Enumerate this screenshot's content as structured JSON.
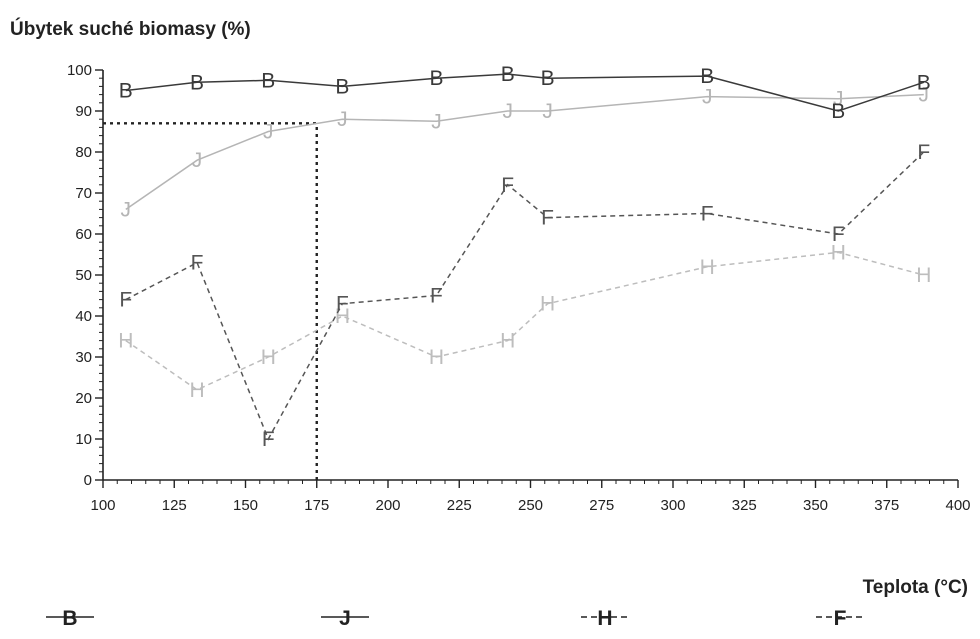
{
  "chart_data": {
    "type": "line",
    "ylabel": "Úbytek suché biomasy (%)",
    "xlabel": "Teplota (°C)",
    "xlim": [
      100,
      400
    ],
    "ylim": [
      0,
      100
    ],
    "x_ticks": [
      100,
      125,
      150,
      175,
      200,
      225,
      250,
      275,
      300,
      325,
      350,
      375,
      400
    ],
    "y_ticks": [
      0,
      10,
      20,
      30,
      40,
      50,
      60,
      70,
      80,
      90,
      100
    ],
    "legend_position": "bottom",
    "grid": false,
    "reference_lines": [
      {
        "kind": "horizontal",
        "y": 87,
        "x_from": 100,
        "x_to": 175
      },
      {
        "kind": "vertical",
        "x": 175,
        "y_from": 0,
        "y_to": 87
      }
    ],
    "series": [
      {
        "name": "B",
        "color": "#3a3a3a",
        "dash": "solid",
        "points": [
          {
            "x": 108,
            "y": 95
          },
          {
            "x": 133,
            "y": 97
          },
          {
            "x": 158,
            "y": 97.5
          },
          {
            "x": 184,
            "y": 96
          },
          {
            "x": 217,
            "y": 98
          },
          {
            "x": 242,
            "y": 99
          },
          {
            "x": 256,
            "y": 98
          },
          {
            "x": 312,
            "y": 98.5
          },
          {
            "x": 358,
            "y": 90
          },
          {
            "x": 388,
            "y": 97
          }
        ]
      },
      {
        "name": "J",
        "color": "#b5b5b5",
        "dash": "solid",
        "points": [
          {
            "x": 108,
            "y": 66
          },
          {
            "x": 133,
            "y": 78
          },
          {
            "x": 158,
            "y": 85
          },
          {
            "x": 184,
            "y": 88
          },
          {
            "x": 217,
            "y": 87.5
          },
          {
            "x": 242,
            "y": 90
          },
          {
            "x": 256,
            "y": 90
          },
          {
            "x": 312,
            "y": 93.5
          },
          {
            "x": 358,
            "y": 93
          },
          {
            "x": 388,
            "y": 94
          }
        ]
      },
      {
        "name": "F",
        "color": "#555555",
        "dash": "dashed",
        "points": [
          {
            "x": 108,
            "y": 44
          },
          {
            "x": 133,
            "y": 53
          },
          {
            "x": 158,
            "y": 10
          },
          {
            "x": 184,
            "y": 43
          },
          {
            "x": 217,
            "y": 45
          },
          {
            "x": 242,
            "y": 72
          },
          {
            "x": 256,
            "y": 64
          },
          {
            "x": 312,
            "y": 65
          },
          {
            "x": 358,
            "y": 60
          },
          {
            "x": 388,
            "y": 80
          }
        ]
      },
      {
        "name": "H",
        "color": "#bdbdbd",
        "dash": "dashed",
        "points": [
          {
            "x": 108,
            "y": 34
          },
          {
            "x": 133,
            "y": 22
          },
          {
            "x": 158,
            "y": 30
          },
          {
            "x": 184,
            "y": 40
          },
          {
            "x": 217,
            "y": 30
          },
          {
            "x": 242,
            "y": 34
          },
          {
            "x": 256,
            "y": 43
          },
          {
            "x": 312,
            "y": 52
          },
          {
            "x": 358,
            "y": 55.5
          },
          {
            "x": 388,
            "y": 50
          }
        ]
      }
    ],
    "legend": [
      {
        "label": "B",
        "color": "#222222",
        "dash": "solid"
      },
      {
        "label": "J",
        "color": "#222222",
        "dash": "solid"
      },
      {
        "label": "H",
        "color": "#222222",
        "dash": "dashed"
      },
      {
        "label": "F",
        "color": "#222222",
        "dash": "dashed"
      }
    ]
  }
}
